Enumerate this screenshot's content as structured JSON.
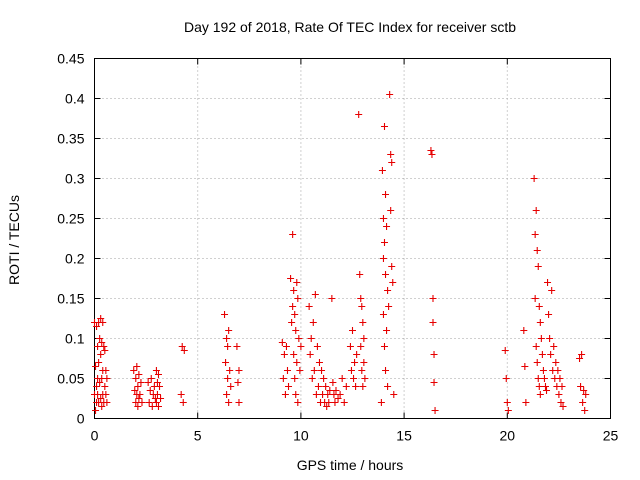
{
  "chart_data": {
    "type": "scatter",
    "title": "Day 192 of 2018, Rate Of TEC Index for receiver sctb",
    "xlabel": "GPS time / hours",
    "ylabel": "ROTI / TECUs",
    "xlim": [
      0,
      25
    ],
    "ylim": [
      0,
      0.45
    ],
    "grid": true,
    "legend": "none",
    "marker": "+",
    "marker_color": "#e60000",
    "x_ticks": [
      {
        "value": 0,
        "label": "0"
      },
      {
        "value": 5,
        "label": "5"
      },
      {
        "value": 10,
        "label": "10"
      },
      {
        "value": 15,
        "label": "15"
      },
      {
        "value": 20,
        "label": "20"
      },
      {
        "value": 25,
        "label": "25"
      }
    ],
    "y_ticks": [
      {
        "value": 0,
        "label": "0"
      },
      {
        "value": 0.05,
        "label": "0.05"
      },
      {
        "value": 0.1,
        "label": "0.1"
      },
      {
        "value": 0.15,
        "label": "0.15"
      },
      {
        "value": 0.2,
        "label": "0.2"
      },
      {
        "value": 0.25,
        "label": "0.25"
      },
      {
        "value": 0.3,
        "label": "0.3"
      },
      {
        "value": 0.35,
        "label": "0.35"
      },
      {
        "value": 0.4,
        "label": "0.4"
      },
      {
        "value": 0.45,
        "label": "0.45"
      }
    ],
    "series": [
      {
        "name": "ROTI",
        "x": [
          0.0,
          0.0,
          0.05,
          0.05,
          0.1,
          0.1,
          0.1,
          0.15,
          0.15,
          0.15,
          0.2,
          0.2,
          0.2,
          0.25,
          0.25,
          0.3,
          0.3,
          0.3,
          0.35,
          0.35,
          0.35,
          0.4,
          0.4,
          0.4,
          0.45,
          0.45,
          0.5,
          0.5,
          0.55,
          0.55,
          0.6,
          0.6,
          1.9,
          1.95,
          2.0,
          2.0,
          2.05,
          2.05,
          2.1,
          2.1,
          2.15,
          2.15,
          2.2,
          2.25,
          2.3,
          2.6,
          2.65,
          2.7,
          2.75,
          2.8,
          2.85,
          2.9,
          2.95,
          3.0,
          3.0,
          3.05,
          3.05,
          3.1,
          3.1,
          3.15,
          3.2,
          4.2,
          4.25,
          4.3,
          4.35,
          6.3,
          6.35,
          6.4,
          6.4,
          6.45,
          6.45,
          6.5,
          6.5,
          6.55,
          6.6,
          6.9,
          6.95,
          7.0,
          7.0,
          9.1,
          9.15,
          9.2,
          9.25,
          9.3,
          9.35,
          9.4,
          9.5,
          9.55,
          9.6,
          9.6,
          9.65,
          9.65,
          9.7,
          9.7,
          9.75,
          9.75,
          9.8,
          9.8,
          9.85,
          9.85,
          9.9,
          9.95,
          10.0,
          10.4,
          10.45,
          10.5,
          10.55,
          10.6,
          10.65,
          10.7,
          10.75,
          10.8,
          10.85,
          10.9,
          10.95,
          11.0,
          11.05,
          11.1,
          11.15,
          11.2,
          11.25,
          11.3,
          11.35,
          11.4,
          11.5,
          11.55,
          11.6,
          11.65,
          11.7,
          11.8,
          11.9,
          12.0,
          12.1,
          12.2,
          12.4,
          12.45,
          12.5,
          12.55,
          12.6,
          12.65,
          12.7,
          12.8,
          12.85,
          12.9,
          12.9,
          12.95,
          12.95,
          13.0,
          13.0,
          13.05,
          13.05,
          13.1,
          13.9,
          13.95,
          14.0,
          14.0,
          14.0,
          14.05,
          14.05,
          14.05,
          14.1,
          14.1,
          14.1,
          14.15,
          14.15,
          14.2,
          14.2,
          14.25,
          14.3,
          14.35,
          14.35,
          14.4,
          14.4,
          14.45,
          14.5,
          16.3,
          16.35,
          16.4,
          16.4,
          16.45,
          16.45,
          16.5,
          19.9,
          19.95,
          20.0,
          20.05,
          20.8,
          20.85,
          20.9,
          21.3,
          21.35,
          21.35,
          21.4,
          21.4,
          21.45,
          21.45,
          21.5,
          21.5,
          21.55,
          21.55,
          21.6,
          21.6,
          21.65,
          21.7,
          21.75,
          21.8,
          21.85,
          21.9,
          21.95,
          22.0,
          22.05,
          22.1,
          22.15,
          22.2,
          22.25,
          22.3,
          22.35,
          22.4,
          22.45,
          22.5,
          22.55,
          22.6,
          22.65,
          22.7,
          23.5,
          23.55,
          23.6,
          23.65,
          23.7,
          23.75,
          23.8
        ],
        "y": [
          0.12,
          0.03,
          0.065,
          0.01,
          0.115,
          0.04,
          0.02,
          0.09,
          0.05,
          0.03,
          0.12,
          0.07,
          0.02,
          0.1,
          0.045,
          0.125,
          0.08,
          0.025,
          0.095,
          0.05,
          0.015,
          0.12,
          0.06,
          0.03,
          0.09,
          0.02,
          0.085,
          0.04,
          0.06,
          0.03,
          0.05,
          0.02,
          0.06,
          0.035,
          0.05,
          0.02,
          0.065,
          0.03,
          0.04,
          0.015,
          0.055,
          0.025,
          0.03,
          0.045,
          0.02,
          0.045,
          0.02,
          0.035,
          0.05,
          0.015,
          0.03,
          0.04,
          0.025,
          0.06,
          0.02,
          0.045,
          0.03,
          0.055,
          0.015,
          0.04,
          0.025,
          0.03,
          0.09,
          0.02,
          0.085,
          0.13,
          0.07,
          0.1,
          0.03,
          0.09,
          0.05,
          0.11,
          0.02,
          0.06,
          0.04,
          0.09,
          0.045,
          0.06,
          0.02,
          0.095,
          0.05,
          0.08,
          0.03,
          0.09,
          0.06,
          0.04,
          0.175,
          0.12,
          0.23,
          0.14,
          0.16,
          0.08,
          0.13,
          0.05,
          0.11,
          0.03,
          0.17,
          0.07,
          0.15,
          0.02,
          0.1,
          0.06,
          0.09,
          0.14,
          0.08,
          0.1,
          0.05,
          0.12,
          0.06,
          0.155,
          0.03,
          0.09,
          0.04,
          0.07,
          0.02,
          0.06,
          0.03,
          0.05,
          0.02,
          0.04,
          0.015,
          0.03,
          0.02,
          0.035,
          0.15,
          0.045,
          0.03,
          0.02,
          0.035,
          0.025,
          0.03,
          0.05,
          0.02,
          0.04,
          0.09,
          0.06,
          0.11,
          0.05,
          0.07,
          0.04,
          0.08,
          0.38,
          0.18,
          0.15,
          0.09,
          0.14,
          0.06,
          0.12,
          0.04,
          0.1,
          0.07,
          0.05,
          0.02,
          0.31,
          0.25,
          0.2,
          0.13,
          0.365,
          0.22,
          0.09,
          0.28,
          0.18,
          0.06,
          0.24,
          0.11,
          0.16,
          0.04,
          0.14,
          0.405,
          0.33,
          0.26,
          0.32,
          0.19,
          0.17,
          0.03,
          0.335,
          0.33,
          0.15,
          0.12,
          0.08,
          0.045,
          0.01,
          0.085,
          0.05,
          0.02,
          0.01,
          0.11,
          0.065,
          0.02,
          0.3,
          0.23,
          0.15,
          0.26,
          0.09,
          0.21,
          0.07,
          0.19,
          0.05,
          0.14,
          0.04,
          0.12,
          0.03,
          0.1,
          0.08,
          0.06,
          0.05,
          0.04,
          0.035,
          0.17,
          0.13,
          0.1,
          0.08,
          0.16,
          0.06,
          0.09,
          0.05,
          0.07,
          0.04,
          0.06,
          0.03,
          0.05,
          0.02,
          0.04,
          0.015,
          0.075,
          0.04,
          0.08,
          0.02,
          0.035,
          0.01,
          0.03
        ]
      }
    ]
  }
}
